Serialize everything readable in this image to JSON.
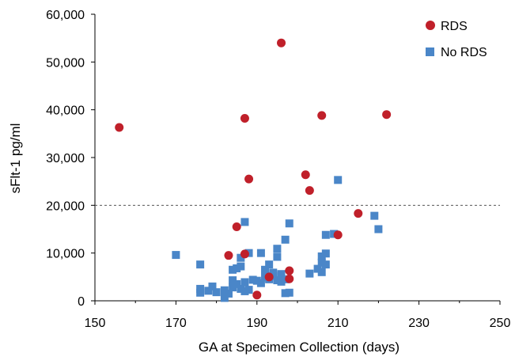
{
  "chart_data": {
    "type": "scatter",
    "xlabel": "GA at Specimen Collection (days)",
    "ylabel": "sFlt-1 pg/ml",
    "xlim": [
      150,
      250
    ],
    "ylim": [
      0,
      60000
    ],
    "x_ticks": [
      150,
      170,
      190,
      210,
      230,
      250
    ],
    "x_tick_labels": [
      "150",
      "170",
      "190",
      "210",
      "230",
      "250"
    ],
    "y_ticks": [
      0,
      10000,
      20000,
      30000,
      40000,
      50000,
      60000
    ],
    "y_tick_labels": [
      "0",
      "10,000",
      "20,000",
      "30,000",
      "40,000",
      "50,000",
      "60,000"
    ],
    "grid": false,
    "legend_position": "top-right",
    "reference_line": {
      "y": 20000,
      "style": "dashed"
    },
    "series": [
      {
        "name": "RDS",
        "marker": "circle",
        "color": "#c0202a",
        "points": [
          [
            156,
            36300
          ],
          [
            187,
            38200
          ],
          [
            196,
            54000
          ],
          [
            206,
            38800
          ],
          [
            222,
            39000
          ],
          [
            188,
            25500
          ],
          [
            202,
            26400
          ],
          [
            203,
            23100
          ],
          [
            215,
            18300
          ],
          [
            185,
            15500
          ],
          [
            210,
            13800
          ],
          [
            183,
            9500
          ],
          [
            187,
            9800
          ],
          [
            193,
            5000
          ],
          [
            198,
            6300
          ],
          [
            198,
            4600
          ],
          [
            190,
            1200
          ]
        ]
      },
      {
        "name": "No RDS",
        "marker": "square",
        "color": "#4a86c8",
        "points": [
          [
            210,
            25300
          ],
          [
            219,
            17800
          ],
          [
            220,
            15000
          ],
          [
            187,
            16500
          ],
          [
            198,
            16200
          ],
          [
            197,
            12800
          ],
          [
            207,
            13800
          ],
          [
            209,
            14000
          ],
          [
            170,
            9600
          ],
          [
            176,
            7600
          ],
          [
            186,
            7200
          ],
          [
            184,
            6500
          ],
          [
            185,
            6800
          ],
          [
            186,
            9000
          ],
          [
            188,
            10000
          ],
          [
            191,
            10000
          ],
          [
            195,
            10900
          ],
          [
            195,
            9200
          ],
          [
            193,
            7600
          ],
          [
            192,
            6500
          ],
          [
            194,
            5900
          ],
          [
            196,
            5600
          ],
          [
            193,
            4500
          ],
          [
            191,
            3700
          ],
          [
            195,
            4300
          ],
          [
            197,
            4500
          ],
          [
            194,
            5200
          ],
          [
            196,
            4000
          ],
          [
            192,
            4900
          ],
          [
            190,
            4200
          ],
          [
            206,
            9300
          ],
          [
            207,
            9900
          ],
          [
            206,
            8000
          ],
          [
            205,
            6700
          ],
          [
            207,
            7600
          ],
          [
            206,
            6000
          ],
          [
            203,
            5700
          ],
          [
            176,
            2500
          ],
          [
            176,
            1700
          ],
          [
            178,
            2100
          ],
          [
            179,
            3000
          ],
          [
            180,
            1800
          ],
          [
            182,
            2200
          ],
          [
            182,
            600
          ],
          [
            183,
            1500
          ],
          [
            184,
            2800
          ],
          [
            184,
            4300
          ],
          [
            185,
            3500
          ],
          [
            186,
            2500
          ],
          [
            187,
            3900
          ],
          [
            187,
            2000
          ],
          [
            188,
            2300
          ],
          [
            197,
            1600
          ],
          [
            198,
            1700
          ],
          [
            189,
            4400
          ]
        ]
      }
    ]
  }
}
